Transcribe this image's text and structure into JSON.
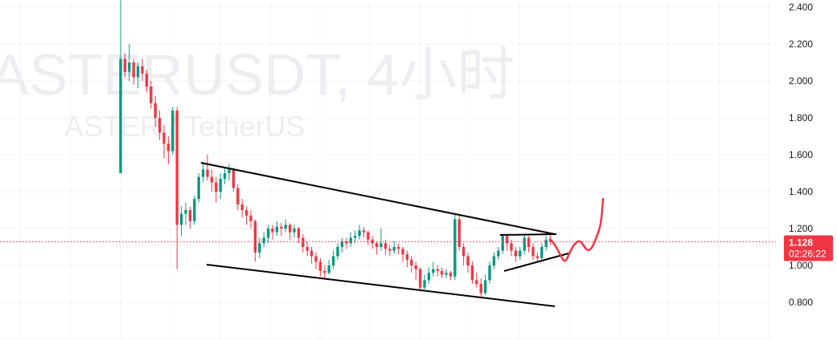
{
  "watermark": {
    "symbol_line": "ASTERUSDT, 4小时",
    "description_line": "ASTER / TetherUS"
  },
  "colors": {
    "up": "#089981",
    "down": "#f23645",
    "grid": "#f0f3fa",
    "trendline": "#000000",
    "freehand": "#f23645",
    "price_label_bg": "#f23645"
  },
  "price_label": {
    "price": "1.128",
    "countdown": "02:26:22"
  },
  "chart_data": {
    "type": "candlestick",
    "title": "",
    "interval": "4小时",
    "y_axis": {
      "position": "right",
      "range": [
        0.76,
        2.44
      ],
      "ticks": [
        "2.400",
        "2.200",
        "2.000",
        "1.800",
        "1.600",
        "1.400",
        "1.200",
        "1.000",
        "0.800"
      ]
    },
    "grid": true,
    "last_price": 1.128,
    "ohlc": [
      [
        1.5,
        2.45,
        1.5,
        2.12
      ],
      [
        2.12,
        2.15,
        2.02,
        2.05
      ],
      [
        2.05,
        2.2,
        2.0,
        2.1
      ],
      [
        2.1,
        2.12,
        1.98,
        2.02
      ],
      [
        2.02,
        2.1,
        1.96,
        2.08
      ],
      [
        2.08,
        2.12,
        2.0,
        2.04
      ],
      [
        2.04,
        2.06,
        1.94,
        1.97
      ],
      [
        1.97,
        2.0,
        1.85,
        1.88
      ],
      [
        1.88,
        1.92,
        1.75,
        1.8
      ],
      [
        1.8,
        1.84,
        1.68,
        1.72
      ],
      [
        1.72,
        1.76,
        1.58,
        1.66
      ],
      [
        1.66,
        1.7,
        1.55,
        1.62
      ],
      [
        1.62,
        1.86,
        1.6,
        1.84
      ],
      [
        1.84,
        1.86,
        0.98,
        1.22
      ],
      [
        1.22,
        1.32,
        1.16,
        1.28
      ],
      [
        1.28,
        1.34,
        1.22,
        1.3
      ],
      [
        1.3,
        1.32,
        1.2,
        1.24
      ],
      [
        1.24,
        1.38,
        1.22,
        1.36
      ],
      [
        1.36,
        1.5,
        1.34,
        1.48
      ],
      [
        1.48,
        1.56,
        1.45,
        1.52
      ],
      [
        1.52,
        1.6,
        1.46,
        1.48
      ],
      [
        1.48,
        1.52,
        1.4,
        1.45
      ],
      [
        1.45,
        1.48,
        1.34,
        1.4
      ],
      [
        1.4,
        1.5,
        1.36,
        1.47
      ],
      [
        1.47,
        1.53,
        1.44,
        1.5
      ],
      [
        1.5,
        1.55,
        1.46,
        1.52
      ],
      [
        1.52,
        1.53,
        1.4,
        1.42
      ],
      [
        1.42,
        1.44,
        1.3,
        1.33
      ],
      [
        1.33,
        1.36,
        1.26,
        1.3
      ],
      [
        1.3,
        1.32,
        1.22,
        1.27
      ],
      [
        1.27,
        1.3,
        1.2,
        1.24
      ],
      [
        1.24,
        1.25,
        1.02,
        1.07
      ],
      [
        1.07,
        1.15,
        1.04,
        1.12
      ],
      [
        1.12,
        1.18,
        1.1,
        1.15
      ],
      [
        1.15,
        1.22,
        1.12,
        1.2
      ],
      [
        1.2,
        1.22,
        1.14,
        1.18
      ],
      [
        1.18,
        1.24,
        1.16,
        1.21
      ],
      [
        1.21,
        1.23,
        1.16,
        1.2
      ],
      [
        1.2,
        1.25,
        1.18,
        1.22
      ],
      [
        1.22,
        1.23,
        1.14,
        1.18
      ],
      [
        1.18,
        1.22,
        1.15,
        1.2
      ],
      [
        1.2,
        1.21,
        1.12,
        1.15
      ],
      [
        1.15,
        1.17,
        1.07,
        1.1
      ],
      [
        1.1,
        1.13,
        1.05,
        1.08
      ],
      [
        1.08,
        1.1,
        1.01,
        1.05
      ],
      [
        1.05,
        1.07,
        0.98,
        1.02
      ],
      [
        1.02,
        1.04,
        0.94,
        0.97
      ],
      [
        0.97,
        1.0,
        0.93,
        0.96
      ],
      [
        0.96,
        1.03,
        0.95,
        1.0
      ],
      [
        1.0,
        1.08,
        0.98,
        1.05
      ],
      [
        1.05,
        1.12,
        1.03,
        1.1
      ],
      [
        1.1,
        1.15,
        1.07,
        1.13
      ],
      [
        1.13,
        1.15,
        1.09,
        1.12
      ],
      [
        1.12,
        1.18,
        1.1,
        1.15
      ],
      [
        1.15,
        1.19,
        1.12,
        1.16
      ],
      [
        1.16,
        1.22,
        1.14,
        1.19
      ],
      [
        1.19,
        1.21,
        1.15,
        1.18
      ],
      [
        1.18,
        1.19,
        1.11,
        1.14
      ],
      [
        1.14,
        1.16,
        1.09,
        1.12
      ],
      [
        1.12,
        1.13,
        1.06,
        1.1
      ],
      [
        1.1,
        1.2,
        1.08,
        1.12
      ],
      [
        1.12,
        1.14,
        1.06,
        1.09
      ],
      [
        1.09,
        1.11,
        1.05,
        1.08
      ],
      [
        1.08,
        1.13,
        1.06,
        1.1
      ],
      [
        1.1,
        1.12,
        1.06,
        1.09
      ],
      [
        1.09,
        1.1,
        1.02,
        1.06
      ],
      [
        1.06,
        1.08,
        0.99,
        1.03
      ],
      [
        1.03,
        1.05,
        0.96,
        1.0
      ],
      [
        1.0,
        1.02,
        0.92,
        0.98
      ],
      [
        0.98,
        0.99,
        0.86,
        0.88
      ],
      [
        0.88,
        0.95,
        0.87,
        0.92
      ],
      [
        0.92,
        0.99,
        0.9,
        0.96
      ],
      [
        0.96,
        1.02,
        0.94,
        0.98
      ],
      [
        0.98,
        1.0,
        0.94,
        0.97
      ],
      [
        0.97,
        0.99,
        0.93,
        0.95
      ],
      [
        0.95,
        0.98,
        0.93,
        0.96
      ],
      [
        0.96,
        0.97,
        0.92,
        0.94
      ],
      [
        0.94,
        1.28,
        0.92,
        1.25
      ],
      [
        1.25,
        1.27,
        1.08,
        1.1
      ],
      [
        1.1,
        1.12,
        1.0,
        1.05
      ],
      [
        1.05,
        1.07,
        0.96,
        1.0
      ],
      [
        1.0,
        1.02,
        0.9,
        0.92
      ],
      [
        0.92,
        0.96,
        0.88,
        0.9
      ],
      [
        0.9,
        0.93,
        0.82,
        0.85
      ],
      [
        0.85,
        0.95,
        0.84,
        0.92
      ],
      [
        0.92,
        1.02,
        0.9,
        1.0
      ],
      [
        1.0,
        1.07,
        0.98,
        1.05
      ],
      [
        1.05,
        1.1,
        1.03,
        1.08
      ],
      [
        1.08,
        1.17,
        1.06,
        1.16
      ],
      [
        1.16,
        1.17,
        1.08,
        1.12
      ],
      [
        1.12,
        1.14,
        1.05,
        1.08
      ],
      [
        1.08,
        1.1,
        1.02,
        1.05
      ],
      [
        1.05,
        1.1,
        1.03,
        1.08
      ],
      [
        1.08,
        1.17,
        1.06,
        1.15
      ],
      [
        1.15,
        1.16,
        1.07,
        1.1
      ],
      [
        1.1,
        1.12,
        1.03,
        1.05
      ],
      [
        1.05,
        1.07,
        1.02,
        1.04
      ],
      [
        1.04,
        1.12,
        1.03,
        1.1
      ],
      [
        1.1,
        1.16,
        1.08,
        1.14
      ],
      [
        1.14,
        1.17,
        1.11,
        1.128
      ]
    ],
    "drawings": [
      {
        "kind": "trendline",
        "name": "upper-channel-line"
      },
      {
        "kind": "trendline",
        "name": "lower-channel-line"
      },
      {
        "kind": "trendline",
        "name": "triangle-top-line"
      },
      {
        "kind": "trendline",
        "name": "triangle-bottom-line"
      },
      {
        "kind": "freehand",
        "name": "projected-path"
      }
    ]
  }
}
